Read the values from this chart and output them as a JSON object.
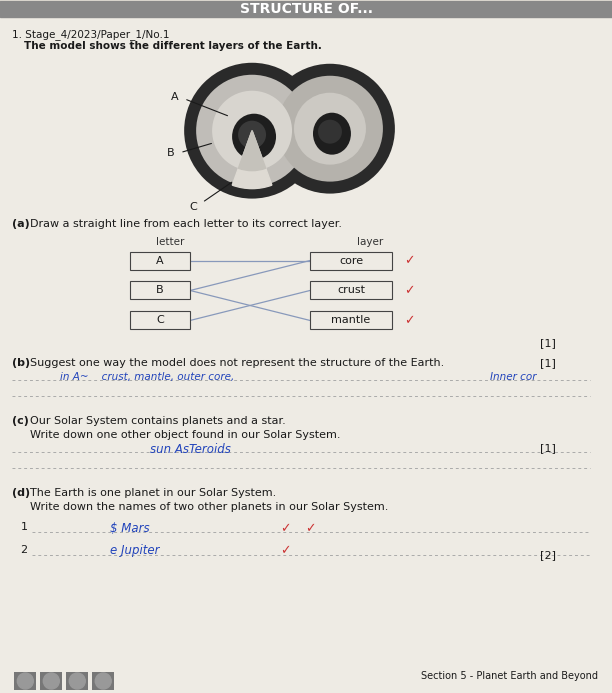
{
  "bg_color": "#d8d4cc",
  "page_bg": "#eeebe4",
  "header_text": "STRUCTURE OF...",
  "q_number": "1.",
  "q_ref": "Stage_4/2023/Paper_1/No.1",
  "q_intro": "The model shows the different layers of the Earth.",
  "qa_label": "(a)",
  "qa_text": "Draw a straight line from each letter to its correct layer.",
  "letter_col": "letter",
  "layer_col": "layer",
  "letters": [
    "A",
    "B",
    "C"
  ],
  "layers": [
    "core",
    "crust",
    "mantle"
  ],
  "qb_label": "(b)",
  "qb_text": "Suggest one way the model does not represent the structure of the Earth.",
  "qb_mark": "[1]",
  "qb_answer_line1": "in A~    crust, mantle, outer core,",
  "qb_answer_line2": "Inner cor",
  "qc_label": "(c)",
  "qc_text": "Our Solar System contains planets and a star.",
  "qc_sub": "Write down one other object found in our Solar System.",
  "qc_mark": "[1]",
  "qc_answer": "sun AsTeroids",
  "qd_label": "(d)",
  "qd_text": "The Earth is one planet in our Solar System.",
  "qd_sub": "Write down the names of two other planets in our Solar System.",
  "qd_mark": "[2]",
  "qd_answer1": "$ Mars",
  "qd_answer2": "e Jupiter",
  "footer": "Section 5 - Planet Earth and Beyond",
  "mark1": "[1]",
  "line_color": "#999999",
  "answer_color": "#2244bb",
  "check_color": "#cc3333",
  "text_color": "#1a1a1a"
}
